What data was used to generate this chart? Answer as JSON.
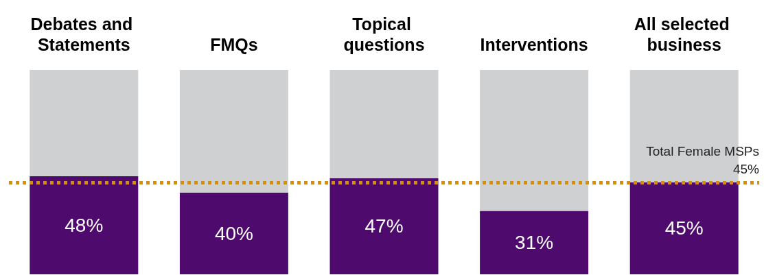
{
  "chart_data": {
    "type": "bar",
    "stacked": true,
    "categories": [
      "Debates and Statements",
      "FMQs",
      "Topical questions",
      "Interventions",
      "All selected business"
    ],
    "series": [
      {
        "color": "#4f0a6e",
        "values": [
          48,
          40,
          47,
          31,
          45
        ],
        "value_labels": [
          "48%",
          "40%",
          "47%",
          "31%",
          "45%"
        ]
      },
      {
        "color": "#cfd0d2",
        "values": [
          52,
          60,
          53,
          69,
          55
        ]
      }
    ],
    "ylim": [
      0,
      100
    ],
    "tick_labels": "x",
    "grid": false,
    "ref_lines": [
      {
        "axis": "y",
        "value": 45,
        "label": "Total Female MSPs 45%",
        "color": "#d4900a",
        "line_style": "dotted"
      }
    ]
  }
}
